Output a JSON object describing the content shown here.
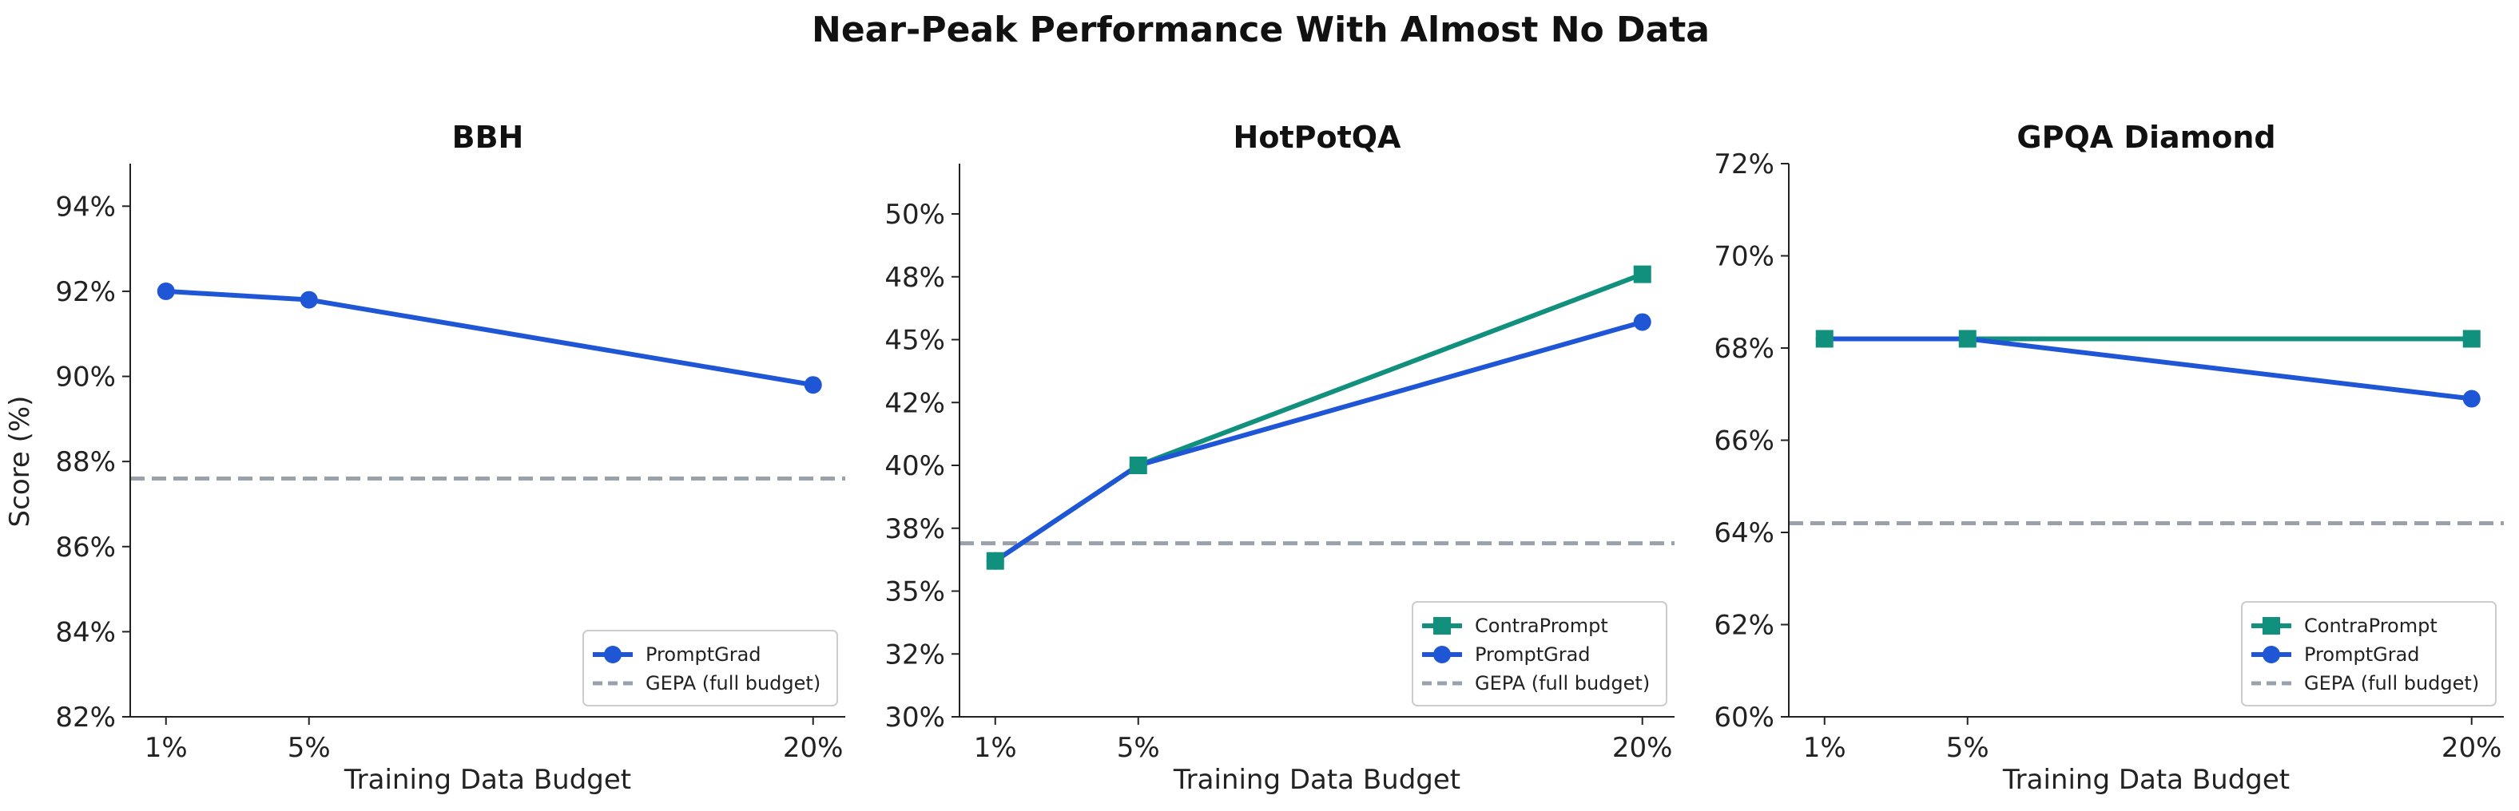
{
  "suptitle": "Near-Peak Performance With Almost No Data",
  "ylabel": "Score (%)",
  "colors": {
    "ContraPrompt": "#12907e",
    "PromptGrad": "#1f56d6",
    "GEPA": "#9aa1ab"
  },
  "chart_data": [
    {
      "type": "line",
      "title": "BBH",
      "xlabel": "Training Data Budget",
      "ylabel": "Score (%)",
      "x": [
        1,
        5,
        20
      ],
      "categories": [
        "1%",
        "5%",
        "20%"
      ],
      "ylim": [
        82,
        95
      ],
      "yticks": [
        82,
        84,
        86,
        88,
        90,
        92,
        94
      ],
      "series": [
        {
          "name": "PromptGrad",
          "marker": "circle",
          "color": "#1f56d6",
          "values": [
            92.0,
            91.8,
            89.8
          ]
        }
      ],
      "baseline": {
        "name": "GEPA (full budget)",
        "value": 87.6,
        "color": "#9aa1ab",
        "style": "dashed"
      },
      "legend": "lower-right"
    },
    {
      "type": "line",
      "title": "HotPotQA",
      "xlabel": "Training Data Budget",
      "ylabel": "",
      "x": [
        1,
        5,
        20
      ],
      "categories": [
        "1%",
        "5%",
        "20%"
      ],
      "ylim": [
        30,
        52
      ],
      "yticks": [
        30,
        32.5,
        35,
        37.5,
        40,
        42.5,
        45,
        47.5,
        50
      ],
      "ytick_labels": [
        "30%",
        "32%",
        "35%",
        "38%",
        "40%",
        "42%",
        "45%",
        "48%",
        "50%"
      ],
      "series": [
        {
          "name": "ContraPrompt",
          "marker": "square",
          "color": "#12907e",
          "values": [
            36.2,
            40.0,
            47.6
          ]
        },
        {
          "name": "PromptGrad",
          "marker": "circle",
          "color": "#1f56d6",
          "values": [
            36.2,
            40.0,
            45.7
          ]
        }
      ],
      "baseline": {
        "name": "GEPA (full budget)",
        "value": 36.9,
        "color": "#9aa1ab",
        "style": "dashed"
      },
      "legend": "lower-right"
    },
    {
      "type": "line",
      "title": "GPQA Diamond",
      "xlabel": "Training Data Budget",
      "ylabel": "",
      "x": [
        1,
        5,
        20
      ],
      "categories": [
        "1%",
        "5%",
        "20%"
      ],
      "ylim": [
        60,
        72
      ],
      "yticks": [
        60,
        62,
        64,
        66,
        68,
        70,
        72
      ],
      "series": [
        {
          "name": "ContraPrompt",
          "marker": "square",
          "color": "#12907e",
          "values": [
            68.2,
            68.2,
            68.2
          ]
        },
        {
          "name": "PromptGrad",
          "marker": "circle",
          "color": "#1f56d6",
          "values": [
            68.2,
            68.2,
            66.9
          ]
        }
      ],
      "baseline": {
        "name": "GEPA (full budget)",
        "value": 64.2,
        "color": "#9aa1ab",
        "style": "dashed"
      },
      "legend": "lower-right"
    }
  ]
}
